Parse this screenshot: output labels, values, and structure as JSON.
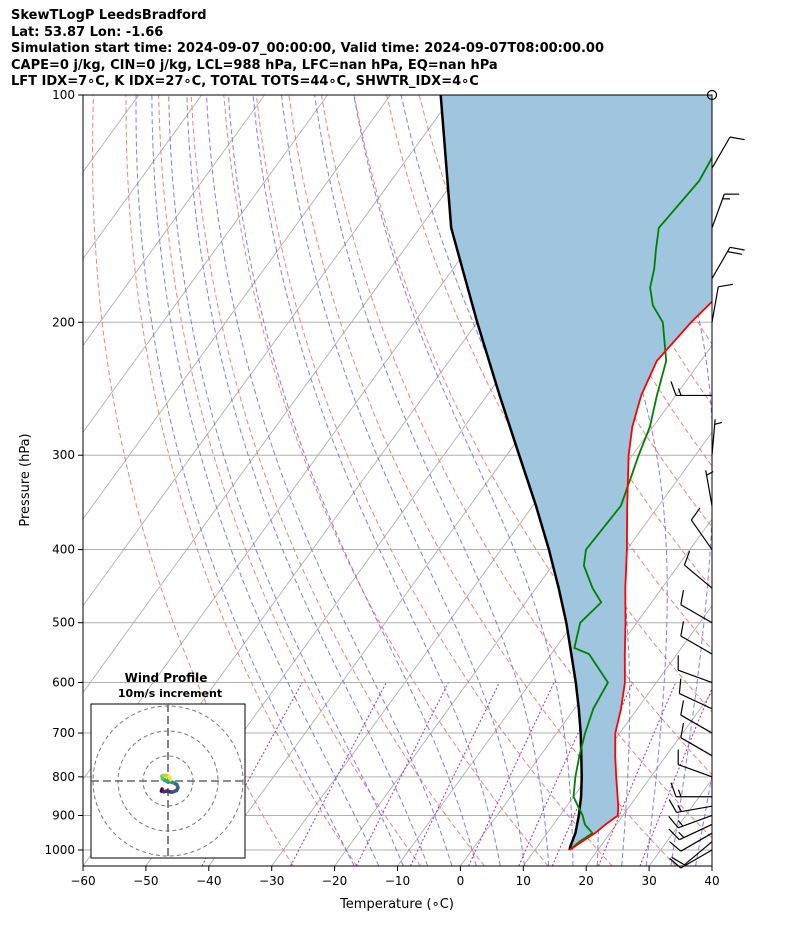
{
  "header": {
    "line1": "SkewTLogP LeedsBradford",
    "line2": "Lat: 53.87   Lon: -1.66",
    "line3": "Simulation start time: 2024-09-07_00:00:00, Valid time: 2024-09-07T08:00:00.00",
    "line4": "CAPE=0 j/kg, CIN=0 j/kg, LCL=988 hPa, LFC=nan hPa, EQ=nan hPa",
    "line5": "LFT IDX=7∘C, K IDX=27∘C, TOTAL TOTS=44∘C, SHWTR_IDX=4∘C"
  },
  "chart_data": [
    {
      "type": "line",
      "subtype": "skew-T log-P diagram",
      "xlabel": "Temperature (∘C)",
      "ylabel": "Pressure (hPa)",
      "xlim": [
        -60,
        40
      ],
      "ylim": [
        1050,
        100
      ],
      "y_scale": "log",
      "xticks": [
        "−60",
        "−50",
        "−40",
        "−30",
        "−20",
        "−10",
        "0",
        "10",
        "20",
        "30",
        "40"
      ],
      "yticks": [
        "100",
        "200",
        "300",
        "400",
        "500",
        "600",
        "700",
        "800",
        "900",
        "1000"
      ],
      "grid": true,
      "colors": {
        "temperature": "#ff0000",
        "dewpoint": "#008000",
        "parcel": "#000000",
        "cape_fill": "#a0c5df",
        "dry_adiabats": "#ff6666",
        "moist_adiabats": "#6666ff",
        "mixing_ratio": "#9933cc",
        "isotherms": "#b0b0b0"
      },
      "series": [
        {
          "p": [
            1000,
            975,
            950,
            925,
            900,
            875,
            850,
            800,
            750,
            700,
            650,
            600,
            550,
            500,
            450,
            400,
            350,
            300,
            275,
            250,
            225,
            200,
            175,
            160,
            150,
            140,
            130,
            120,
            110,
            100
          ],
          "t": [
            15.5,
            16.5,
            17.6,
            18.3,
            19.2,
            18.2,
            17.0,
            14.5,
            11.9,
            9.3,
            7.4,
            5.0,
            1.7,
            -1.8,
            -5.8,
            -10.0,
            -15.0,
            -20.6,
            -23.3,
            -25.5,
            -27.0,
            -26.0,
            -24.0,
            -23.0,
            -21.0,
            -20.0,
            -19.5,
            -19.5,
            -19.0,
            -18.5
          ]
        },
        {
          "p": [
            1000,
            975,
            950,
            925,
            900,
            875,
            850,
            800,
            750,
            700,
            650,
            600,
            550,
            540,
            500,
            470,
            450,
            420,
            400,
            350,
            300,
            275,
            250,
            225,
            200,
            190,
            180,
            170,
            160,
            150,
            130,
            110,
            100
          ],
          "td": [
            15.5,
            16.1,
            17.2,
            15.0,
            13.6,
            11.8,
            10.0,
            8.0,
            6.2,
            4.5,
            3.0,
            2.3,
            -4.0,
            -7.0,
            -9.0,
            -8.0,
            -11.0,
            -15.0,
            -16.5,
            -16.0,
            -19.0,
            -20.5,
            -23.0,
            -25.5,
            -30.5,
            -34.0,
            -36.5,
            -38.0,
            -40.0,
            -42.0,
            -41.0,
            -42.5,
            -42.5
          ]
        },
        {
          "p": [
            1000,
            988,
            950,
            900,
            850,
            800,
            750,
            700,
            650,
            600,
            550,
            500,
            450,
            400,
            350,
            300,
            250,
            200,
            150,
            100
          ],
          "parcel_t": [
            15.5,
            15.2,
            14.5,
            13.0,
            11.2,
            9.0,
            6.5,
            3.8,
            0.7,
            -2.8,
            -6.8,
            -11.2,
            -16.4,
            -22.4,
            -29.5,
            -38.0,
            -48.0,
            -60.0,
            -75.0,
            -92.0
          ]
        }
      ],
      "wind_barbs": {
        "p": [
          1000,
          975,
          950,
          925,
          900,
          875,
          850,
          800,
          750,
          700,
          650,
          600,
          550,
          500,
          450,
          400,
          350,
          300,
          250,
          200,
          175,
          150,
          125,
          100
        ],
        "speed_kt": [
          10,
          10,
          12,
          14,
          15,
          15,
          15,
          10,
          10,
          10,
          10,
          10,
          10,
          10,
          10,
          10,
          5,
          5,
          15,
          10,
          20,
          15,
          10,
          0
        ],
        "direction_deg": [
          240,
          230,
          240,
          245,
          250,
          260,
          270,
          290,
          300,
          300,
          295,
          290,
          300,
          300,
          310,
          325,
          350,
          5,
          270,
          10,
          30,
          20,
          30,
          0
        ]
      }
    },
    {
      "type": "scatter",
      "subtype": "hodograph",
      "title": "Wind Profile",
      "subtitle": "10m/s increment",
      "ring_step_ms": 10,
      "rings": 3,
      "u": [
        -2.4,
        -2.6,
        -1.8,
        -0.4,
        1.6,
        3.4,
        4.0,
        3.5,
        2.0,
        0.8,
        -0.4,
        -1.4,
        -2.2,
        -2.4,
        -1.8,
        -0.8,
        0.4,
        1.0
      ],
      "v": [
        -3.2,
        -4.0,
        -4.3,
        -4.0,
        -4.5,
        -3.8,
        -2.6,
        -1.4,
        -0.6,
        -0.3,
        -0.2,
        0.5,
        0.8,
        1.9,
        2.3,
        2.2,
        1.6,
        0.5
      ]
    }
  ]
}
